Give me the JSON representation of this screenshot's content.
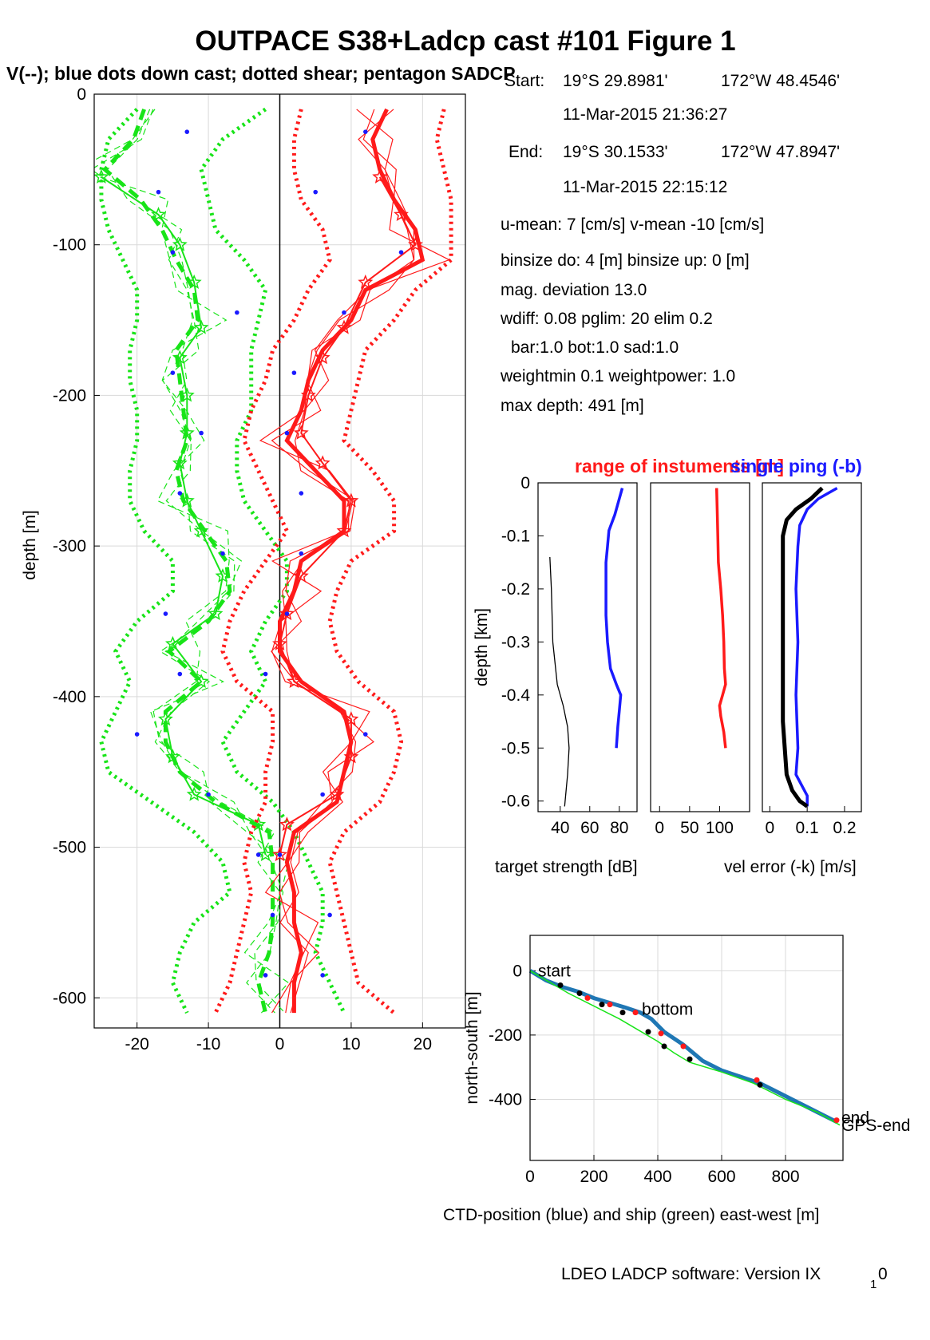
{
  "figure": {
    "title": "OUTPACE S38+Ladcp cast #101  Figure 1",
    "subtitle": "V(--); blue dots down cast; dotted shear; pentagon SADCP",
    "footer_main": "LDEO LADCP software: Version IX",
    "footer_sub": "1",
    "footer_tail": "0"
  },
  "info": {
    "start_label": "Start:",
    "start_lat": "19°S 29.8981'",
    "start_lon": "172°W 48.4546'",
    "start_time": "11-Mar-2015 21:36:27",
    "end_label": "End:",
    "end_lat": "19°S 30.1533'",
    "end_lon": "172°W 47.8947'",
    "end_time": "11-Mar-2015 22:15:12",
    "means": "u-mean:   7 [cm/s]    v-mean -10 [cm/s]",
    "binsize": "binsize do: 4 [m]  binsize up:  0 [m]",
    "magdev": "mag. deviation 13.0",
    "wdiff": "wdiff: 0.08  pglim: 20  elim 0.2",
    "bar": "bar:1.0 bot:1.0 sad:1.0",
    "weight": "weightmin 0.1  weightpower: 1.0",
    "maxdepth": "max depth: 491 [m]"
  },
  "chart_data": [
    {
      "type": "line",
      "name": "velocity-profiles",
      "ylabel": "depth [m]",
      "xlim": [
        -26,
        26
      ],
      "ylim": [
        -620,
        0
      ],
      "xticks": [
        "-20",
        "-10",
        "0",
        "10",
        "20"
      ],
      "yticks": [
        "0",
        "-100",
        "-200",
        "-300",
        "-400",
        "-500",
        "-600"
      ],
      "depth": [
        -10,
        -30,
        -50,
        -70,
        -90,
        -110,
        -130,
        -150,
        -170,
        -190,
        -210,
        -230,
        -250,
        -270,
        -290,
        -310,
        -330,
        -350,
        -370,
        -390,
        -410,
        -430,
        -450,
        -470,
        -490,
        -510,
        -530,
        -550,
        -570,
        -590,
        -610
      ],
      "colors": {
        "v": "#18e418",
        "u": "#ff1a1a",
        "dots": "#1a1aff"
      },
      "series": [
        {
          "component": "v",
          "values": [
            -19,
            -20.5,
            -24.5,
            -19.5,
            -16.5,
            -14.5,
            -12,
            -11.5,
            -14.5,
            -14,
            -13.5,
            -13,
            -14.5,
            -13.5,
            -10.5,
            -7.5,
            -7,
            -10,
            -15.5,
            -11,
            -16,
            -16,
            -14,
            -9,
            -1.5,
            -1,
            -1,
            -1,
            -1.5,
            -3,
            -2
          ],
          "upper": [
            -2,
            -8,
            -11,
            -10,
            -9,
            -5,
            -2,
            -3,
            -4,
            -4,
            -4,
            -6,
            -6,
            -5,
            -2,
            1,
            1,
            -2,
            -4,
            -2,
            -5,
            -8,
            -6,
            -1,
            2,
            4,
            6,
            6,
            5,
            7,
            9
          ],
          "lower": [
            -20,
            -24,
            -25,
            -25,
            -24,
            -22,
            -20,
            -20,
            -21,
            -21,
            -20,
            -20,
            -21,
            -21,
            -19,
            -15,
            -15,
            -20,
            -23,
            -21,
            -23,
            -25,
            -24,
            -18,
            -12,
            -8,
            -7,
            -12,
            -14,
            -15,
            -13
          ]
        },
        {
          "component": "u",
          "values": [
            15,
            13,
            14,
            16,
            19,
            20,
            12,
            10,
            6,
            4,
            3,
            1,
            5,
            9,
            9,
            3,
            2,
            0,
            0,
            3,
            9,
            10,
            9,
            8,
            2,
            1,
            2,
            2,
            3,
            2,
            2
          ],
          "upper": [
            23,
            22,
            23,
            24,
            24,
            24,
            19,
            16,
            12,
            11,
            10,
            9,
            13,
            16,
            16,
            10,
            8,
            7,
            8,
            11,
            16,
            17,
            16,
            14,
            9,
            7,
            8,
            9,
            10,
            11,
            16
          ],
          "lower": [
            3,
            2,
            2,
            3,
            6,
            7,
            4,
            2,
            -1,
            -2,
            -4,
            -5,
            -3,
            -1,
            1,
            -2,
            -5,
            -7,
            -8,
            -6,
            -1,
            -1,
            -2,
            -2,
            -4,
            -5,
            -4,
            -5,
            -6,
            -7,
            -9
          ]
        }
      ],
      "sadcp_depth": [
        -55,
        -80,
        -100,
        -125,
        -155,
        -175,
        -200,
        -225,
        -245,
        -270,
        -290,
        -320,
        -345,
        -365,
        -390,
        -415,
        -440,
        -465,
        -485,
        -505
      ],
      "sadcp_v": [
        -25,
        -17,
        -14,
        -12,
        -11,
        -14,
        -13,
        -13,
        -14,
        -13,
        -11,
        -8,
        -9,
        -15,
        -11,
        -16,
        -15,
        -12,
        -3,
        -2
      ],
      "sadcp_u": [
        14,
        17,
        19,
        12,
        9,
        6,
        4,
        3,
        6,
        10,
        9,
        3,
        1,
        0,
        2,
        10,
        10,
        8,
        1,
        0
      ],
      "blue_dots_depth": [
        -25,
        -65,
        -105,
        -145,
        -185,
        -225,
        -265,
        -305,
        -345,
        -385,
        -425,
        -465,
        -505,
        -545,
        -585
      ],
      "blue_dots_v": [
        -13,
        -17,
        -15,
        -6,
        -15,
        -11,
        -14,
        -8,
        -16,
        -14,
        -20,
        -10,
        -3,
        -1,
        -2
      ],
      "blue_dots_u": [
        12,
        5,
        17,
        9,
        2,
        1,
        3,
        3,
        1,
        -2,
        12,
        6,
        0,
        7,
        6
      ]
    },
    {
      "type": "line",
      "name": "target-strength",
      "title": "range of instuments [m]",
      "xlabel": "target strength [dB]",
      "ylabel": "depth [km]",
      "xlim": [
        25,
        92
      ],
      "ylim": [
        -0.62,
        0
      ],
      "xticks": [
        "40",
        "60",
        "80"
      ],
      "yticks": [
        "0",
        "-0.1",
        "-0.2",
        "-0.3",
        "-0.4",
        "-0.5",
        "-0.6"
      ],
      "series": [
        {
          "name": "target strength",
          "color": "#1a1aff",
          "depth": [
            -0.01,
            -0.03,
            -0.06,
            -0.09,
            -0.12,
            -0.15,
            -0.2,
            -0.25,
            -0.3,
            -0.35,
            -0.38,
            -0.4,
            -0.43,
            -0.46,
            -0.5
          ],
          "values": [
            82,
            80,
            77,
            73,
            72,
            71,
            71,
            71,
            72,
            74,
            78,
            81,
            80,
            79,
            78
          ]
        },
        {
          "name": "range",
          "color": "#000000",
          "depth": [
            -0.14,
            -0.2,
            -0.3,
            -0.38,
            -0.42,
            -0.46,
            -0.5,
            -0.55,
            -0.61
          ],
          "values": [
            33,
            34,
            35,
            38,
            42,
            45,
            46,
            45,
            43
          ]
        }
      ]
    },
    {
      "type": "line",
      "name": "range-of-instruments",
      "xlim": [
        -15,
        150
      ],
      "ylim": [
        -0.62,
        0
      ],
      "xticks": [
        "0",
        "50",
        "100"
      ],
      "series": [
        {
          "name": "range",
          "color": "#ff1a1a",
          "depth": [
            -0.01,
            -0.05,
            -0.1,
            -0.15,
            -0.2,
            -0.25,
            -0.3,
            -0.35,
            -0.38,
            -0.4,
            -0.42,
            -0.44,
            -0.47,
            -0.5
          ],
          "values": [
            95,
            96,
            97,
            98,
            102,
            105,
            107,
            108,
            110,
            105,
            100,
            102,
            107,
            110
          ]
        }
      ]
    },
    {
      "type": "line",
      "name": "velocity-error",
      "title": "single ping (-b)",
      "xlabel": "vel error (-k) [m/s]",
      "xlim": [
        -0.02,
        0.245
      ],
      "ylim": [
        -0.62,
        0
      ],
      "xticks": [
        "0",
        "0.1",
        "0.2"
      ],
      "series": [
        {
          "name": "single ping",
          "color": "#1a1aff",
          "depth": [
            -0.01,
            -0.03,
            -0.05,
            -0.08,
            -0.12,
            -0.2,
            -0.3,
            -0.4,
            -0.5,
            -0.55,
            -0.59,
            -0.61
          ],
          "values": [
            0.18,
            0.13,
            0.1,
            0.08,
            0.075,
            0.07,
            0.075,
            0.07,
            0.075,
            0.07,
            0.1,
            0.1
          ]
        },
        {
          "name": "vel error",
          "color": "#000000",
          "depth": [
            -0.01,
            -0.03,
            -0.05,
            -0.07,
            -0.1,
            -0.15,
            -0.25,
            -0.35,
            -0.45,
            -0.55,
            -0.58,
            -0.6,
            -0.61
          ],
          "values": [
            0.14,
            0.11,
            0.07,
            0.045,
            0.035,
            0.035,
            0.035,
            0.035,
            0.035,
            0.045,
            0.06,
            0.08,
            0.1
          ]
        }
      ]
    },
    {
      "type": "line",
      "name": "position",
      "xlabel": "CTD-position (blue) and ship (green) east-west [m]",
      "ylabel": "north-south [m]",
      "xlim": [
        0,
        980
      ],
      "ylim": [
        -590,
        110
      ],
      "xticks": [
        "0",
        "200",
        "400",
        "600",
        "800"
      ],
      "yticks": [
        "0",
        "-200",
        "-400"
      ],
      "labels": {
        "start": "start",
        "bottom": "bottom",
        "end": "end",
        "gps_end": "GPS-end"
      },
      "series": [
        {
          "name": "ctd",
          "color": "#1f77b4",
          "x": [
            0,
            50,
            100,
            150,
            200,
            250,
            300,
            345,
            380,
            420,
            480,
            540,
            600,
            660,
            720,
            780,
            840,
            900,
            960
          ],
          "y": [
            0,
            -30,
            -50,
            -65,
            -85,
            -100,
            -115,
            -130,
            -150,
            -190,
            -230,
            -280,
            -310,
            -330,
            -350,
            -380,
            -410,
            -440,
            -470
          ]
        },
        {
          "name": "ship",
          "color": "#18e418",
          "x": [
            0,
            60,
            120,
            200,
            280,
            340,
            400,
            450,
            500,
            600,
            700,
            800,
            900,
            970
          ],
          "y": [
            0,
            -35,
            -70,
            -110,
            -150,
            -185,
            -220,
            -255,
            -285,
            -315,
            -350,
            -400,
            -440,
            -480
          ]
        }
      ],
      "black_points": {
        "x": [
          95,
          155,
          225,
          290,
          370,
          420,
          500,
          720
        ],
        "y": [
          -45,
          -70,
          -105,
          -130,
          -190,
          -235,
          -275,
          -355
        ]
      },
      "red_points": {
        "x": [
          180,
          250,
          330,
          410,
          480,
          710,
          960
        ],
        "y": [
          -85,
          -105,
          -130,
          -195,
          -235,
          -340,
          -465
        ]
      }
    }
  ]
}
